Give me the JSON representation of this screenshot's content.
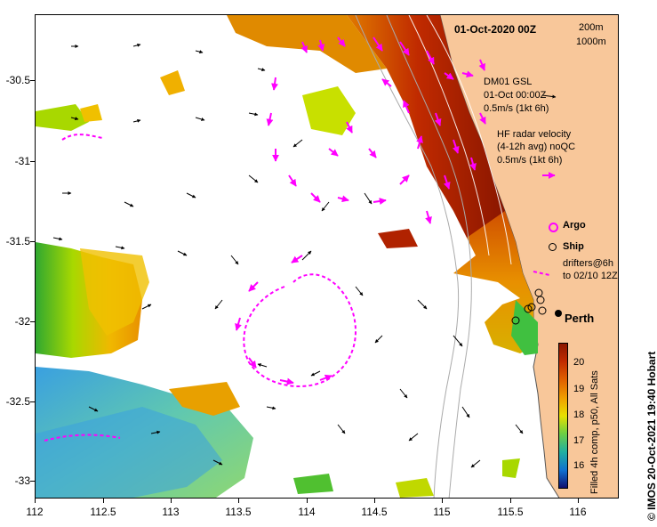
{
  "map": {
    "date_title": "01-Oct-2020 00Z",
    "isobaths": [
      "200m",
      "1000m"
    ],
    "glider_label": "DM01 GSL",
    "glider_time": "01-Oct 00:00Z",
    "glider_scale": "0.5m/s (1kt 6h)",
    "radar_title": "HF radar velocity",
    "radar_subtitle": "(4-12h avg) noQC",
    "radar_scale": "0.5m/s (1kt 6h)",
    "argo_label": "Argo",
    "ship_label": "Ship",
    "drifters_line1": "drifters@6h",
    "drifters_line2": "to 02/10 12Z",
    "city_label": "Perth",
    "colorbar_title": "Filled 4h comp, p50, All Sats",
    "colorbar_ticks": [
      "20",
      "19",
      "18",
      "17",
      "16"
    ],
    "credit": "© IMOS 20-Oct-2021 19:40 Hobart",
    "lat_ticks": [
      "-30.5",
      "-31",
      "-31.5",
      "-32",
      "-32.5",
      "-33"
    ],
    "lon_ticks": [
      "112",
      "112.5",
      "113",
      "113.5",
      "114",
      "114.5",
      "115",
      "115.5",
      "116"
    ]
  },
  "colors": {
    "land": "#f8c79a",
    "hf_vectors": "#ff00ff",
    "glider": "#000000",
    "sst_hot": "#9a1b00",
    "sst_cold": "#2e8fd8"
  }
}
